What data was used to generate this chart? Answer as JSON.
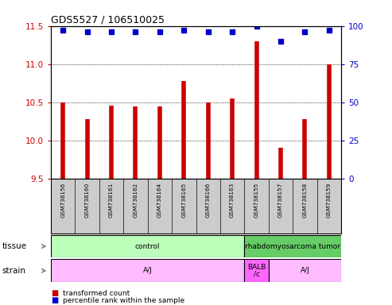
{
  "title": "GDS5527 / 106510025",
  "samples": [
    "GSM738156",
    "GSM738160",
    "GSM738161",
    "GSM738162",
    "GSM738164",
    "GSM738165",
    "GSM738166",
    "GSM738163",
    "GSM738155",
    "GSM738157",
    "GSM738158",
    "GSM738159"
  ],
  "red_values": [
    10.5,
    10.28,
    10.45,
    10.44,
    10.44,
    10.78,
    10.5,
    10.55,
    11.3,
    9.9,
    10.28,
    11.0
  ],
  "blue_values": [
    97,
    96,
    96,
    96,
    96,
    97,
    96,
    96,
    100,
    90,
    96,
    97
  ],
  "ylim_left": [
    9.5,
    11.5
  ],
  "ylim_right": [
    0,
    100
  ],
  "yticks_left": [
    9.5,
    10.0,
    10.5,
    11.0,
    11.5
  ],
  "yticks_right": [
    0,
    25,
    50,
    75,
    100
  ],
  "tissue_labels": [
    {
      "text": "control",
      "start": 0,
      "end": 8,
      "color": "#bbffbb"
    },
    {
      "text": "rhabdomyosarcoma tumor",
      "start": 8,
      "end": 12,
      "color": "#66cc66"
    }
  ],
  "strain_labels": [
    {
      "text": "A/J",
      "start": 0,
      "end": 8,
      "color": "#ffbbff"
    },
    {
      "text": "BALB\n/c",
      "start": 8,
      "end": 9,
      "color": "#ff66ff"
    },
    {
      "text": "A/J",
      "start": 9,
      "end": 12,
      "color": "#ffbbff"
    }
  ],
  "bar_color": "#cc0000",
  "dot_color": "#0000cc",
  "background_color": "#ffffff",
  "tick_label_color_left": "#cc0000",
  "tick_label_color_right": "#0000cc",
  "label_area_color": "#cccccc",
  "tissue_arrow_color": "#888888",
  "strain_arrow_color": "#888888"
}
